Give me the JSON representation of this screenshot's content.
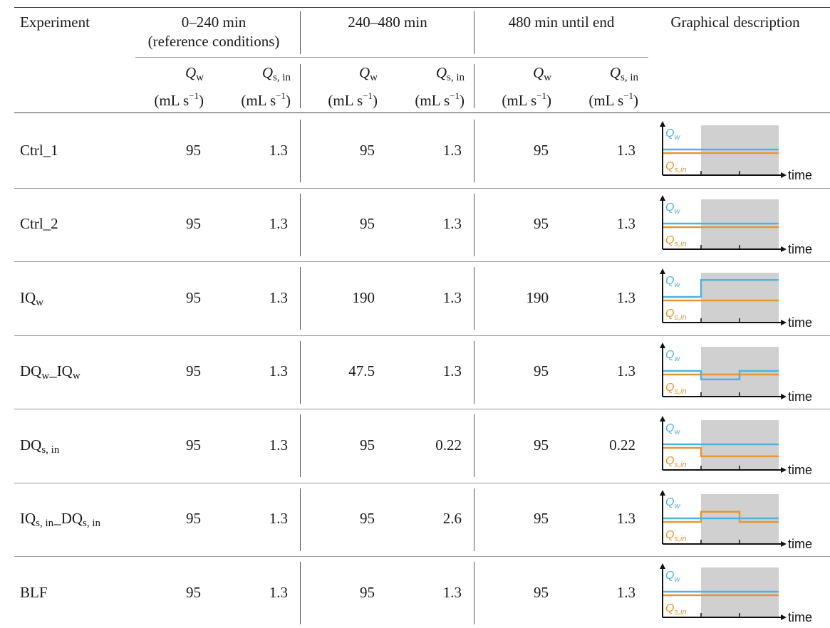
{
  "header": {
    "experiment": "Experiment",
    "period1": "0–240 min",
    "period1_note": "(reference conditions)",
    "period2": "240–480 min",
    "period3": "480 min until end",
    "graphical": "Graphical description",
    "qw_symbol": "Q",
    "qw_sub": "w",
    "qs_symbol": "Q",
    "qs_sub": "s, in",
    "unit_prefix": "(mL s",
    "unit_exp": "−1",
    "unit_suffix": ")"
  },
  "rows": [
    {
      "name": "Ctrl_1",
      "base": "Ctrl_1",
      "sub1": "",
      "mid": "",
      "sub2": "",
      "values": [
        "95",
        "1.3",
        "95",
        "1.3",
        "95",
        "1.3"
      ]
    },
    {
      "name": "Ctrl_2",
      "base": "Ctrl_2",
      "sub1": "",
      "mid": "",
      "sub2": "",
      "values": [
        "95",
        "1.3",
        "95",
        "1.3",
        "95",
        "1.3"
      ]
    },
    {
      "name": "IQw",
      "base": "IQ",
      "sub1": "w",
      "mid": "",
      "sub2": "",
      "values": [
        "95",
        "1.3",
        "190",
        "1.3",
        "190",
        "1.3"
      ]
    },
    {
      "name": "DQw_IQw",
      "base": "DQ",
      "sub1": "w",
      "mid": "_IQ",
      "sub2": "w",
      "values": [
        "95",
        "1.3",
        "47.5",
        "1.3",
        "95",
        "1.3"
      ]
    },
    {
      "name": "DQs,in",
      "base": "DQ",
      "sub1": "s, in",
      "mid": "",
      "sub2": "",
      "values": [
        "95",
        "1.3",
        "95",
        "0.22",
        "95",
        "0.22"
      ]
    },
    {
      "name": "IQs,in_DQs,in",
      "base": "IQ",
      "sub1": "s, in",
      "mid": "_DQ",
      "sub2": "s, in",
      "values": [
        "95",
        "1.3",
        "95",
        "2.6",
        "95",
        "1.3"
      ]
    },
    {
      "name": "BLF",
      "base": "BLF",
      "sub1": "",
      "mid": "",
      "sub2": "",
      "values": [
        "95",
        "1.3",
        "95",
        "1.3",
        "95",
        "1.3"
      ]
    }
  ],
  "graph": {
    "qw_label": "Q",
    "qw_sub": "w",
    "qs_label": "Q",
    "qs_sub": "s,in",
    "time_label": "time",
    "qw_color": "#4fb3e0",
    "qs_color": "#e8962e",
    "shade_color": "#d0d0d0",
    "profiles": [
      {
        "qw": [
          95,
          95,
          95
        ],
        "qs": [
          1.3,
          1.3,
          1.3
        ]
      },
      {
        "qw": [
          95,
          95,
          95
        ],
        "qs": [
          1.3,
          1.3,
          1.3
        ]
      },
      {
        "qw": [
          95,
          190,
          190
        ],
        "qs": [
          1.3,
          1.3,
          1.3
        ]
      },
      {
        "qw": [
          95,
          47.5,
          95
        ],
        "qs": [
          1.3,
          1.3,
          1.3
        ]
      },
      {
        "qw": [
          95,
          95,
          95
        ],
        "qs": [
          1.3,
          0.22,
          0.22
        ]
      },
      {
        "qw": [
          95,
          95,
          95
        ],
        "qs": [
          1.3,
          2.6,
          1.3
        ]
      },
      {
        "qw": [
          95,
          95,
          95
        ],
        "qs": [
          1.3,
          1.3,
          1.3
        ]
      }
    ]
  }
}
